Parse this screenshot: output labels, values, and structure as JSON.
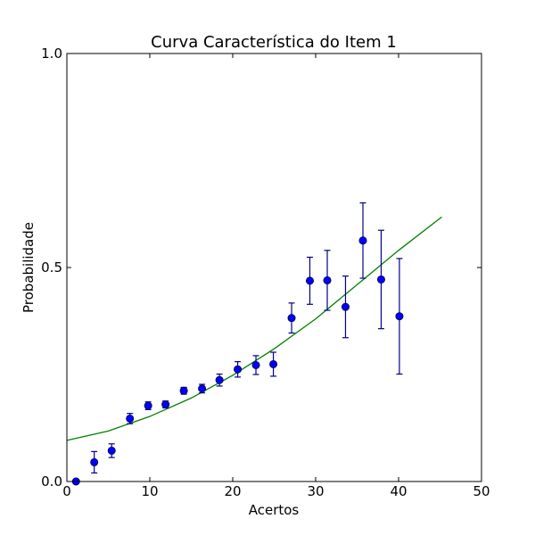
{
  "chart_data": {
    "type": "scatter",
    "title": "Curva Característica do Item 1",
    "xlabel": "Acertos",
    "ylabel": "Probabilidade",
    "xlim": [
      0,
      50
    ],
    "ylim": [
      0,
      1
    ],
    "xticks": [
      0,
      10,
      20,
      30,
      40,
      50
    ],
    "xtick_labels": [
      "0",
      "10",
      "20",
      "30",
      "40",
      "50"
    ],
    "yticks": [
      0,
      0.5,
      1
    ],
    "ytick_labels": [
      "0.0",
      "0.5",
      "1.0"
    ],
    "grid": false,
    "legend": "none",
    "series": [
      {
        "kind": "errorbar",
        "color": "#0000ff",
        "errcolor": "#00008b",
        "x": [
          1.1,
          3.3,
          5.4,
          7.6,
          9.8,
          11.9,
          14.1,
          16.3,
          18.4,
          20.6,
          22.8,
          24.9,
          27.1,
          29.3,
          31.4,
          33.6,
          35.7,
          37.9,
          40.1
        ],
        "y": [
          0.0,
          0.045,
          0.072,
          0.147,
          0.177,
          0.18,
          0.212,
          0.217,
          0.237,
          0.262,
          0.272,
          0.274,
          0.382,
          0.469,
          0.47,
          0.408,
          0.563,
          0.472,
          0.386
        ],
        "yerr": [
          0.0,
          0.025,
          0.016,
          0.012,
          0.009,
          0.008,
          0.008,
          0.01,
          0.014,
          0.018,
          0.022,
          0.028,
          0.035,
          0.055,
          0.07,
          0.072,
          0.088,
          0.115,
          0.135
        ]
      },
      {
        "kind": "line",
        "color": "#008000",
        "x": [
          0,
          5,
          10,
          15,
          20,
          25,
          30,
          35,
          40,
          45.2
        ],
        "y": [
          0.096,
          0.118,
          0.152,
          0.195,
          0.248,
          0.31,
          0.38,
          0.46,
          0.54,
          0.618
        ]
      }
    ]
  }
}
